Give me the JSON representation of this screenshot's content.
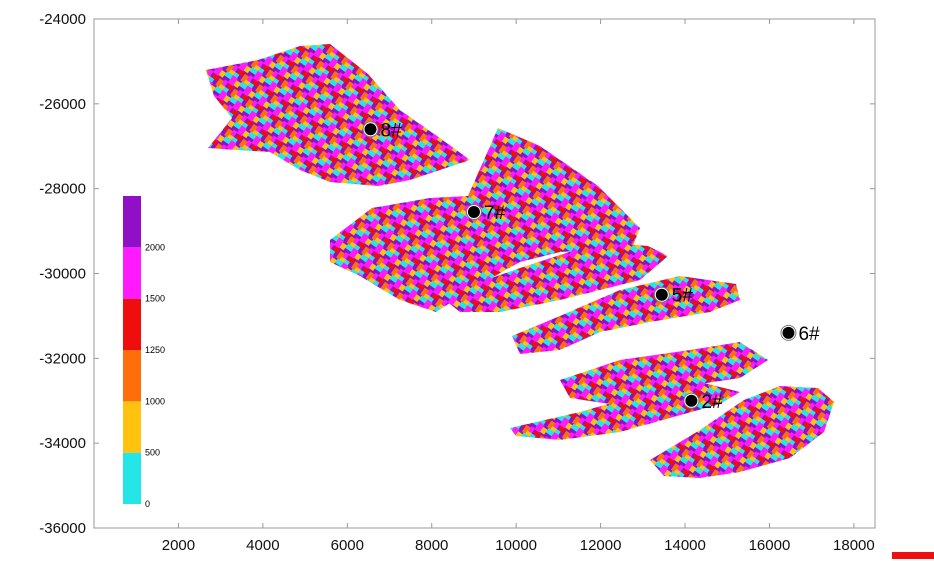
{
  "chart_data": {
    "type": "scatter",
    "xlim": [
      0,
      18500
    ],
    "ylim": [
      -36000,
      -24000
    ],
    "x_ticks": [
      2000,
      4000,
      6000,
      8000,
      10000,
      12000,
      14000,
      16000,
      18000
    ],
    "y_ticks": [
      -24000,
      -26000,
      -28000,
      -30000,
      -32000,
      -34000,
      -36000
    ],
    "x_tick_labels": [
      "2000",
      "4000",
      "6000",
      "8000",
      "10000",
      "12000",
      "14000",
      "16000",
      "18000"
    ],
    "y_tick_labels": [
      "-24000",
      "-26000",
      "-28000",
      "-30000",
      "-32000",
      "-34000",
      "-36000"
    ],
    "wells": [
      {
        "label": "8#",
        "x": 6550,
        "y": -26600
      },
      {
        "label": "7#",
        "x": 9000,
        "y": -28550
      },
      {
        "label": "5#",
        "x": 13450,
        "y": -30500
      },
      {
        "label": "6#",
        "x": 16450,
        "y": -31400
      },
      {
        "label": "2#",
        "x": 14150,
        "y": -33000
      }
    ],
    "colorbar": {
      "levels": [
        {
          "label": "0",
          "color": "#25e6e6"
        },
        {
          "label": "500",
          "color": "#ffc20e"
        },
        {
          "label": "1000",
          "color": "#ff6e0a"
        },
        {
          "label": "1250",
          "color": "#ee0e0e"
        },
        {
          "label": "1500",
          "color": "#ff1aff"
        },
        {
          "label": "2000",
          "color": "#9010c8"
        }
      ]
    },
    "grid": false
  }
}
